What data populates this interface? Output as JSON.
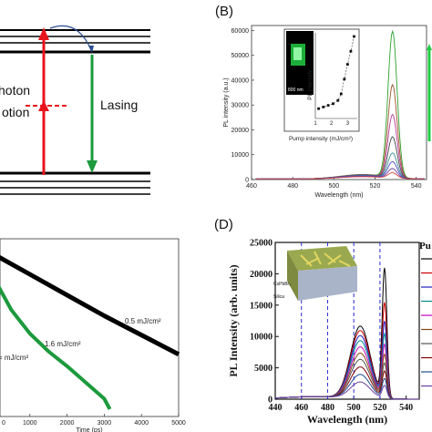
{
  "panels": {
    "A": {
      "labels": {
        "lasing": "Lasing",
        "photon_partial": "hoton",
        "option_partial": "otion"
      },
      "colors": {
        "pump": "#e8141c",
        "lasing": "#1c9a3c",
        "dash": "#e8141c"
      }
    },
    "B": {
      "letter": "(B)",
      "chart_data": {
        "type": "line",
        "xlabel": "Wavelength (nm)",
        "ylabel": "PL intensity (a.u.)",
        "xlim": [
          460,
          545
        ],
        "ylim": [
          0,
          62000
        ],
        "xticks": [
          "460",
          "480",
          "500",
          "520",
          "540"
        ],
        "yticks": [
          "0",
          "10000",
          "20000",
          "30000",
          "40000",
          "50000",
          "60000"
        ],
        "series": [
          {
            "peak": 59500,
            "broad": 1800,
            "color": "#2ca02c"
          },
          {
            "peak": 38000,
            "broad": 1700,
            "color": "#a0522d"
          },
          {
            "peak": 26000,
            "broad": 1600,
            "color": "#b83a9a"
          },
          {
            "peak": 17000,
            "broad": 1500,
            "color": "#444444"
          },
          {
            "peak": 10500,
            "broad": 1400,
            "color": "#3b8f8f"
          },
          {
            "peak": 7000,
            "broad": 1300,
            "color": "#4a4ac8"
          },
          {
            "peak": 4200,
            "broad": 1100,
            "color": "#6b3fa0"
          },
          {
            "peak": 2500,
            "broad": 900,
            "color": "#d04040"
          }
        ],
        "inset": {
          "xlabel": "Pump intensity (mJ/cm²)",
          "ylabel": "PL intensity",
          "xticks": [
            "1",
            "2",
            "3"
          ],
          "scale_label": "800 nm",
          "points": [
            [
              1.2,
              0.12
            ],
            [
              1.5,
              0.14
            ],
            [
              1.8,
              0.16
            ],
            [
              2.1,
              0.18
            ],
            [
              2.4,
              0.22
            ],
            [
              2.6,
              0.3
            ],
            [
              2.8,
              0.48
            ],
            [
              3.0,
              0.66
            ],
            [
              3.2,
              0.82
            ],
            [
              3.4,
              1.0
            ]
          ]
        }
      }
    },
    "C": {
      "chart_data": {
        "type": "line",
        "xlabel": "Time (ps)",
        "xlim": [
          0,
          5000
        ],
        "xticks": [
          "0",
          "1000",
          "2000",
          "3000",
          "4000",
          "5000"
        ],
        "series": [
          {
            "label": "0.5 mJ/cm²",
            "color": "#000000",
            "points": [
              [
                0,
                1.0
              ],
              [
                1000,
                0.86
              ],
              [
                2000,
                0.72
              ],
              [
                3000,
                0.58
              ],
              [
                4000,
                0.45
              ],
              [
                5000,
                0.32
              ]
            ]
          },
          {
            "label": "1.6 mJ/cm²",
            "color": "#1c9a3c",
            "points": [
              [
                0,
                0.85
              ],
              [
                500,
                0.62
              ],
              [
                1000,
                0.46
              ],
              [
                1500,
                0.34
              ],
              [
                2000,
                0.24
              ],
              [
                2500,
                0.13
              ],
              [
                3000,
                0.02
              ],
              [
                3150,
                -0.05
              ]
            ]
          }
        ],
        "partial_label": "= mJ/cm²"
      }
    },
    "D": {
      "letter": "(D)",
      "chart_data": {
        "type": "line",
        "xlabel": "Wavelength (nm)",
        "ylabel": "PL Intensity (arb. units)",
        "xlim": [
          440,
          550
        ],
        "ylim": [
          0,
          25000
        ],
        "xticks": [
          "440",
          "460",
          "480",
          "500",
          "520",
          "540"
        ],
        "yticks": [
          "0",
          "5000",
          "10000",
          "15000",
          "20000",
          "25000"
        ],
        "vlines": [
          460,
          480,
          500,
          520
        ],
        "series": [
          {
            "broad": 11500,
            "peak": 21000,
            "color": "#000000"
          },
          {
            "broad": 10800,
            "peak": 15500,
            "color": "#cc0000"
          },
          {
            "broad": 10000,
            "peak": 12500,
            "color": "#2020c0"
          },
          {
            "broad": 9200,
            "peak": 10500,
            "color": "#008b8b"
          },
          {
            "broad": 8200,
            "peak": 8800,
            "color": "#c000c0"
          },
          {
            "broad": 7200,
            "peak": 7200,
            "color": "#8b4513"
          },
          {
            "broad": 6200,
            "peak": 5800,
            "color": "#555555"
          },
          {
            "broad": 5000,
            "peak": 4500,
            "color": "#800000"
          },
          {
            "broad": 3800,
            "peak": 3300,
            "color": "#1f4f8f"
          },
          {
            "broad": 2600,
            "peak": 2200,
            "color": "#6b3fa0"
          }
        ],
        "inset_labels": {
          "top": "CsPbBr₃",
          "bottom": "Silica"
        },
        "legend_partial": "Pu"
      }
    }
  }
}
